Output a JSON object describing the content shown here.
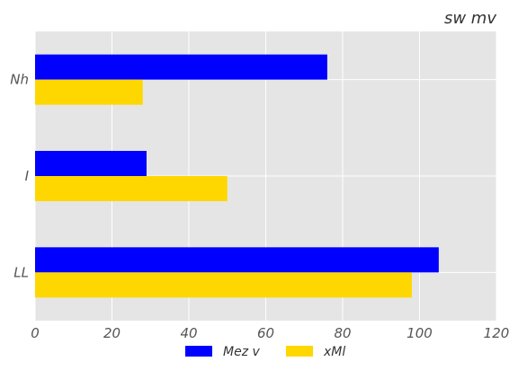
{
  "chart_data": {
    "type": "bar",
    "orientation": "horizontal",
    "title": "sw mv",
    "xlabel": "",
    "ylabel": "",
    "categories": [
      "Nh",
      "I",
      "LL"
    ],
    "series": [
      {
        "name": "Mez v",
        "color": "#0000ff",
        "values": [
          76,
          29,
          105
        ]
      },
      {
        "name": "xMl",
        "color": "#ffd700",
        "values": [
          28,
          50,
          98
        ]
      }
    ],
    "xlim": [
      0,
      120
    ],
    "xticks": [
      "0",
      "20",
      "40",
      "60",
      "80",
      "100",
      "120"
    ],
    "grid": true,
    "legend": "bottom-center",
    "background": "#e5e5e5",
    "gridColor": "#ffffff"
  }
}
